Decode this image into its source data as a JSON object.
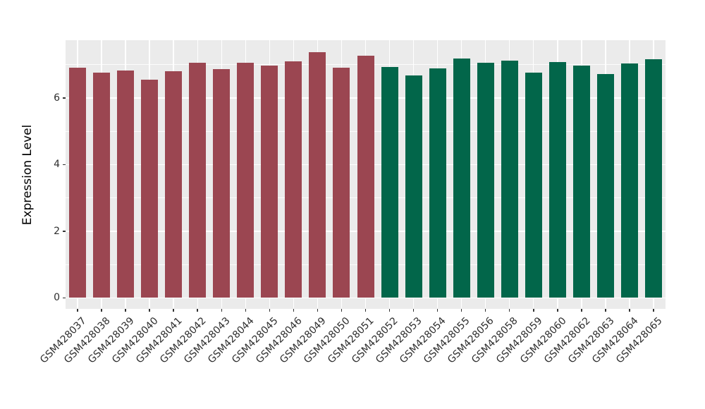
{
  "chart_data": {
    "type": "bar",
    "title": "",
    "xlabel": "",
    "ylabel": "Expression Level",
    "yticks": [
      0,
      2,
      4,
      6
    ],
    "minor_gridlines": [
      1,
      3,
      5,
      7
    ],
    "ylim": [
      -0.33,
      7.73
    ],
    "legend": "none",
    "grid": "on",
    "panel_bg": "#EBEBEB",
    "grid_color": "#FFFFFF",
    "tick_color": "#333333",
    "axis_text_color": "#2E2E2E",
    "group_colors": {
      "groupA": "#9B4651",
      "groupB": "#02664A"
    },
    "bars": [
      {
        "label": "GSM428037",
        "value": 6.91,
        "group": "groupA"
      },
      {
        "label": "GSM428038",
        "value": 6.75,
        "group": "groupA"
      },
      {
        "label": "GSM428039",
        "value": 6.81,
        "group": "groupA"
      },
      {
        "label": "GSM428040",
        "value": 6.55,
        "group": "groupA"
      },
      {
        "label": "GSM428041",
        "value": 6.79,
        "group": "groupA"
      },
      {
        "label": "GSM428042",
        "value": 7.05,
        "group": "groupA"
      },
      {
        "label": "GSM428043",
        "value": 6.87,
        "group": "groupA"
      },
      {
        "label": "GSM428044",
        "value": 7.05,
        "group": "groupA"
      },
      {
        "label": "GSM428045",
        "value": 6.96,
        "group": "groupA"
      },
      {
        "label": "GSM428046",
        "value": 7.1,
        "group": "groupA"
      },
      {
        "label": "GSM428049",
        "value": 7.37,
        "group": "groupA"
      },
      {
        "label": "GSM428050",
        "value": 6.91,
        "group": "groupA"
      },
      {
        "label": "GSM428051",
        "value": 7.27,
        "group": "groupA"
      },
      {
        "label": "GSM428052",
        "value": 6.92,
        "group": "groupB"
      },
      {
        "label": "GSM428053",
        "value": 6.68,
        "group": "groupB"
      },
      {
        "label": "GSM428054",
        "value": 6.88,
        "group": "groupB"
      },
      {
        "label": "GSM428055",
        "value": 7.17,
        "group": "groupB"
      },
      {
        "label": "GSM428056",
        "value": 7.06,
        "group": "groupB"
      },
      {
        "label": "GSM428058",
        "value": 7.12,
        "group": "groupB"
      },
      {
        "label": "GSM428059",
        "value": 6.76,
        "group": "groupB"
      },
      {
        "label": "GSM428060",
        "value": 7.08,
        "group": "groupB"
      },
      {
        "label": "GSM428062",
        "value": 6.96,
        "group": "groupB"
      },
      {
        "label": "GSM428063",
        "value": 6.72,
        "group": "groupB"
      },
      {
        "label": "GSM428064",
        "value": 7.04,
        "group": "groupB"
      },
      {
        "label": "GSM428065",
        "value": 7.15,
        "group": "groupB"
      }
    ]
  }
}
